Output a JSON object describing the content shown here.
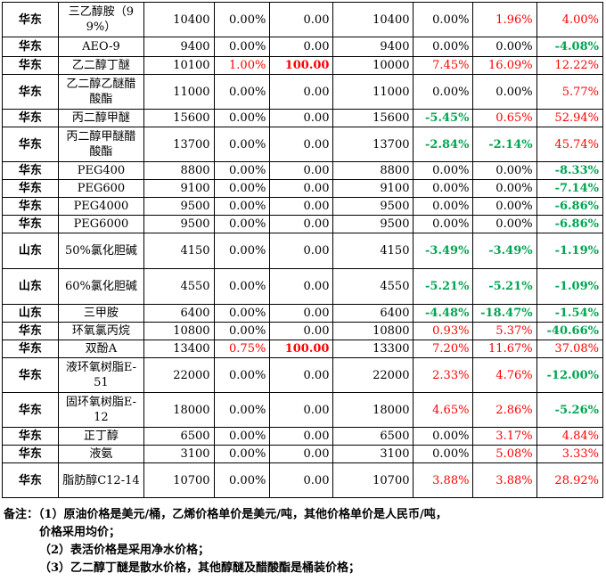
{
  "rows": [
    {
      "region": "华东",
      "name": "三乙醇胺（99%）",
      "c1": "10400",
      "c2": "0.00%",
      "c3": "0.00",
      "c4": "10400",
      "c5": "0.00%",
      "c6": "1.96%",
      "c7": "4.00%",
      "h": 39,
      "wrap": true,
      "s2": "",
      "s3": "",
      "s5": "",
      "s6": "red",
      "s7": "red"
    },
    {
      "region": "华东",
      "name": "AEO-9",
      "c1": "9400",
      "c2": "0.00%",
      "c3": "0.00",
      "c4": "9400",
      "c5": "0.00%",
      "c6": "0.00%",
      "c7": "-4.08%",
      "h": 22,
      "wrap": false,
      "s2": "",
      "s3": "",
      "s5": "",
      "s6": "",
      "s7": "green"
    },
    {
      "region": "华东",
      "name": "乙二醇丁醚",
      "c1": "10100",
      "c2": "1.00%",
      "c3": "100.00",
      "c4": "10000",
      "c5": "7.45%",
      "c6": "16.09%",
      "c7": "12.22%",
      "h": 20,
      "wrap": false,
      "s2": "red",
      "s3": "red bold",
      "s5": "red",
      "s6": "red",
      "s7": "red"
    },
    {
      "region": "华东",
      "name": "乙二醇乙醚醋酸酯",
      "c1": "11000",
      "c2": "0.00%",
      "c3": "0.00",
      "c4": "11000",
      "c5": "0.00%",
      "c6": "0.00%",
      "c7": "5.77%",
      "h": 39,
      "wrap": true,
      "s2": "",
      "s3": "",
      "s5": "",
      "s6": "",
      "s7": "red"
    },
    {
      "region": "华东",
      "name": "丙二醇甲醚",
      "c1": "15600",
      "c2": "0.00%",
      "c3": "0.00",
      "c4": "15600",
      "c5": "-5.45%",
      "c6": "0.65%",
      "c7": "52.94%",
      "h": 20,
      "wrap": false,
      "s2": "",
      "s3": "",
      "s5": "green",
      "s6": "red",
      "s7": "red"
    },
    {
      "region": "华东",
      "name": "丙二醇甲醚醋酸酯",
      "c1": "13700",
      "c2": "0.00%",
      "c3": "0.00",
      "c4": "13700",
      "c5": "-2.84%",
      "c6": "-2.14%",
      "c7": "45.74%",
      "h": 39,
      "wrap": true,
      "s2": "",
      "s3": "",
      "s5": "green",
      "s6": "green",
      "s7": "red"
    },
    {
      "region": "华东",
      "name": "PEG400",
      "c1": "8800",
      "c2": "0.00%",
      "c3": "0.00",
      "c4": "8800",
      "c5": "0.00%",
      "c6": "0.00%",
      "c7": "-8.33%",
      "h": 20,
      "wrap": false,
      "s2": "",
      "s3": "",
      "s5": "",
      "s6": "",
      "s7": "green"
    },
    {
      "region": "华东",
      "name": "PEG600",
      "c1": "9100",
      "c2": "0.00%",
      "c3": "0.00",
      "c4": "9100",
      "c5": "0.00%",
      "c6": "0.00%",
      "c7": "-7.14%",
      "h": 20,
      "wrap": false,
      "s2": "",
      "s3": "",
      "s5": "",
      "s6": "",
      "s7": "green"
    },
    {
      "region": "华东",
      "name": "PEG4000",
      "c1": "9500",
      "c2": "0.00%",
      "c3": "0.00",
      "c4": "9500",
      "c5": "0.00%",
      "c6": "0.00%",
      "c7": "-6.86%",
      "h": 20,
      "wrap": false,
      "s2": "",
      "s3": "",
      "s5": "",
      "s6": "",
      "s7": "green"
    },
    {
      "region": "华东",
      "name": "PEG6000",
      "c1": "9500",
      "c2": "0.00%",
      "c3": "0.00",
      "c4": "9500",
      "c5": "0.00%",
      "c6": "0.00%",
      "c7": "-6.86%",
      "h": 20,
      "wrap": false,
      "s2": "",
      "s3": "",
      "s5": "",
      "s6": "",
      "s7": "green"
    },
    {
      "region": "山东",
      "name": "50%氯化胆碱",
      "c1": "4150",
      "c2": "0.00%",
      "c3": "0.00",
      "c4": "4150",
      "c5": "-3.49%",
      "c6": "-3.49%",
      "c7": "-1.19%",
      "h": 40,
      "wrap": true,
      "s2": "",
      "s3": "",
      "s5": "green",
      "s6": "green",
      "s7": "green"
    },
    {
      "region": "山东",
      "name": "60%氯化胆碱",
      "c1": "4550",
      "c2": "0.00%",
      "c3": "0.00",
      "c4": "4550",
      "c5": "-5.21%",
      "c6": "-5.21%",
      "c7": "-1.09%",
      "h": 40,
      "wrap": true,
      "s2": "",
      "s3": "",
      "s5": "green",
      "s6": "green",
      "s7": "green"
    },
    {
      "region": "山东",
      "name": "三甲胺",
      "c1": "6400",
      "c2": "0.00%",
      "c3": "0.00",
      "c4": "6400",
      "c5": "-4.48%",
      "c6": "-18.47%",
      "c7": "-1.54%",
      "h": 20,
      "wrap": false,
      "s2": "",
      "s3": "",
      "s5": "green",
      "s6": "green",
      "s7": "green"
    },
    {
      "region": "华东",
      "name": "环氧氯丙烷",
      "c1": "10800",
      "c2": "0.00%",
      "c3": "0.00",
      "c4": "10800",
      "c5": "0.93%",
      "c6": "5.37%",
      "c7": "-40.66%",
      "h": 20,
      "wrap": false,
      "s2": "",
      "s3": "",
      "s5": "red",
      "s6": "red",
      "s7": "green"
    },
    {
      "region": "华东",
      "name": "双酚A",
      "c1": "13400",
      "c2": "0.75%",
      "c3": "100.00",
      "c4": "13300",
      "c5": "7.20%",
      "c6": "11.67%",
      "c7": "37.08%",
      "h": 20,
      "wrap": false,
      "s2": "red",
      "s3": "red bold",
      "s5": "red",
      "s6": "red",
      "s7": "red"
    },
    {
      "region": "华东",
      "name": "液环氧树脂E-51",
      "c1": "22000",
      "c2": "0.00%",
      "c3": "0.00",
      "c4": "22000",
      "c5": "2.33%",
      "c6": "4.76%",
      "c7": "-12.00%",
      "h": 39,
      "wrap": true,
      "s2": "",
      "s3": "",
      "s5": "red",
      "s6": "red",
      "s7": "green"
    },
    {
      "region": "华东",
      "name": "固环氧树脂E-12",
      "c1": "18000",
      "c2": "0.00%",
      "c3": "0.00",
      "c4": "18000",
      "c5": "4.65%",
      "c6": "2.86%",
      "c7": "-5.26%",
      "h": 39,
      "wrap": true,
      "s2": "",
      "s3": "",
      "s5": "red",
      "s6": "red",
      "s7": "green"
    },
    {
      "region": "华东",
      "name": "正丁醇",
      "c1": "6500",
      "c2": "0.00%",
      "c3": "0.00",
      "c4": "6500",
      "c5": "0.00%",
      "c6": "3.17%",
      "c7": "4.84%",
      "h": 20,
      "wrap": false,
      "s2": "",
      "s3": "",
      "s5": "",
      "s6": "red",
      "s7": "red"
    },
    {
      "region": "华东",
      "name": "液氨",
      "c1": "3100",
      "c2": "0.00%",
      "c3": "0.00",
      "c4": "3100",
      "c5": "0.00%",
      "c6": "5.08%",
      "c7": "3.33%",
      "h": 20,
      "wrap": false,
      "s2": "",
      "s3": "",
      "s5": "",
      "s6": "red",
      "s7": "red"
    },
    {
      "region": "华东",
      "name": "脂肪醇C12-14",
      "c1": "10700",
      "c2": "0.00%",
      "c3": "0.00",
      "c4": "10700",
      "c5": "3.88%",
      "c6": "3.88%",
      "c7": "28.92%",
      "h": 39,
      "wrap": true,
      "s2": "",
      "s3": "",
      "s5": "red",
      "s6": "red",
      "s7": "red"
    }
  ],
  "notes": {
    "line1": "备注：（1）原油价格是美元/桶，乙烯价格单价是美元/吨，其他价格单价是人民币/吨，",
    "line2": "价格采用均价；",
    "line3": "（2）表活价格是采用净水价格；",
    "line4": "（3）乙二醇丁醚是散水价格，其他醇醚及醋酸酯是桶装价格；"
  }
}
